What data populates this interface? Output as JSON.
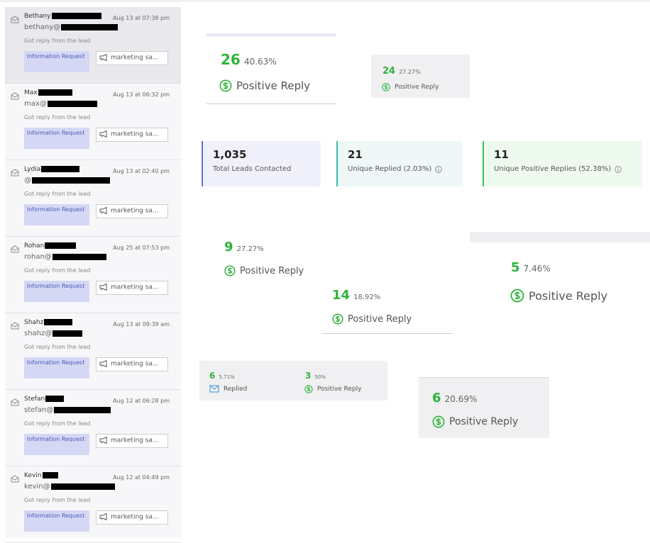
{
  "leads": [
    {
      "name": "Bethany",
      "date": "Aug 13 at 07:38 pm",
      "email": "bethany@",
      "status": "Got reply from the lead",
      "tag": "Information Request",
      "campaign": "marketing sa..."
    },
    {
      "name": "Max",
      "date": "Aug 13 at 06:32 pm",
      "email": "max@",
      "status": "Got reply from the lead",
      "tag": "Information Request",
      "campaign": "marketing sa..."
    },
    {
      "name": "Lydia",
      "date": "Aug 13 at 02:40 pm",
      "email": "@",
      "status": "Got reply from the lead",
      "tag": "Information Request",
      "campaign": "marketing sa..."
    },
    {
      "name": "Rohan",
      "date": "Aug 25 at 07:53 pm",
      "email": "rohan@",
      "status": "Got reply from the lead",
      "tag": "Information Request",
      "campaign": "marketing sa..."
    },
    {
      "name": "Shahz",
      "date": "Aug 13 at 09:39 am",
      "email": "shahz@",
      "status": "Got reply from the lead",
      "tag": "Information Request",
      "campaign": "marketing sa..."
    },
    {
      "name": "Stefan",
      "date": "Aug 12 at 06:28 pm",
      "email": "stefan@",
      "status": "Got reply from the lead",
      "tag": "Information Request",
      "campaign": "marketing sa..."
    },
    {
      "name": "Kevin",
      "date": "Aug 12 at 04:49 pm",
      "email": "kevin@",
      "status": "Got reply from the lead",
      "tag": "Information Request",
      "campaign": "marketing sa..."
    }
  ],
  "summary": [
    {
      "value": "1,035",
      "label": "Total Leads Contacted"
    },
    {
      "value": "21",
      "label": "Unique Replied (2.03%)"
    },
    {
      "value": "11",
      "label": "Unique Positive Replies (52.38%)"
    }
  ],
  "cards": [
    {
      "count": "26",
      "percent": "40.63%",
      "label": "Positive Reply"
    },
    {
      "count": "24",
      "percent": "27.27%",
      "label": "Positive Reply"
    },
    {
      "count": "9",
      "percent": "27.27%",
      "label": "Positive Reply"
    },
    {
      "count": "5",
      "percent": "7.46%",
      "label": "Positive Reply"
    },
    {
      "count": "14",
      "percent": "18.92%",
      "label": "Positive Reply"
    },
    {
      "count": "6",
      "percent": "20.69%",
      "label": "Positive Reply"
    }
  ],
  "split_card": [
    {
      "count": "6",
      "percent": "5.71%",
      "label": "Replied"
    },
    {
      "count": "3",
      "percent": "50%",
      "label": "Positive Reply"
    }
  ]
}
